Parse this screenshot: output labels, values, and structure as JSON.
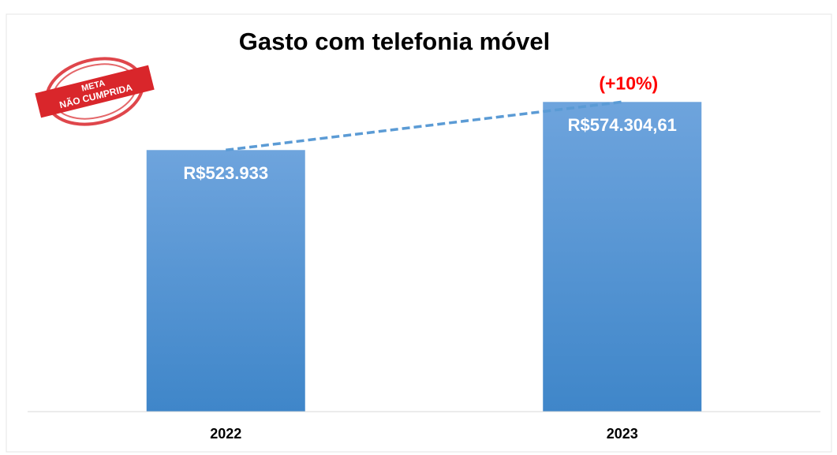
{
  "chart_data": {
    "type": "bar",
    "title": "Gasto com telefonia móvel",
    "categories": [
      "2022",
      "2023"
    ],
    "values": [
      523933,
      574304.61
    ],
    "value_labels": [
      "R$523.933",
      "R$574.304,61"
    ],
    "color": "#5b9bd5",
    "ylim": [
      250000,
      615000
    ],
    "trend_line": true,
    "annotation": "(+10%)",
    "annotation_color": "#ff0000",
    "stamp": [
      "META",
      "NÃO CUMPRIDA"
    ]
  }
}
